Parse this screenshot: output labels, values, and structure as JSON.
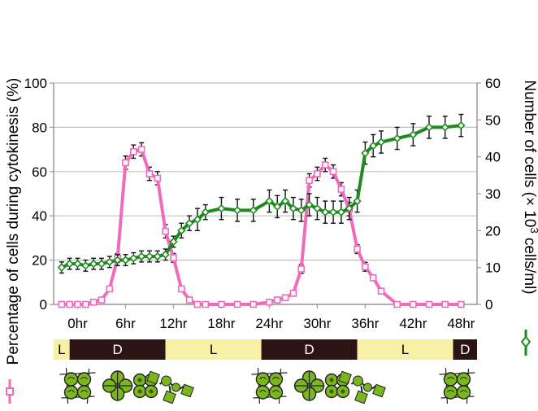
{
  "chart_data": {
    "type": "line",
    "xlabel": "",
    "ylabel": "Percentage of cells during cytokinesis (%)",
    "y2label_prefix": "Number of cells (× 10",
    "y2label_sup": "3",
    "y2label_suffix": " cells/ml)",
    "xlim": [
      -3,
      50
    ],
    "ylim": [
      0,
      100
    ],
    "y2lim": [
      0,
      60
    ],
    "y_ticks": [
      0,
      20,
      40,
      60,
      80,
      100
    ],
    "y2_ticks": [
      0,
      10,
      20,
      30,
      40,
      50,
      60
    ],
    "x_ticks": [
      {
        "value": 0,
        "label": "0hr"
      },
      {
        "value": 6,
        "label": "6hr"
      },
      {
        "value": 12,
        "label": "12hr"
      },
      {
        "value": 18,
        "label": "18hr"
      },
      {
        "value": 24,
        "label": "24hr"
      },
      {
        "value": 30,
        "label": "30hr"
      },
      {
        "value": 36,
        "label": "36hr"
      },
      {
        "value": 42,
        "label": "42hr"
      },
      {
        "value": 48,
        "label": "48hr"
      }
    ],
    "grid": true,
    "series": [
      {
        "axis": "left",
        "color": "#f06bbd",
        "marker": "square",
        "x": [
          -2,
          -1,
          0,
          1,
          2,
          3,
          4,
          5,
          6,
          7,
          8,
          9,
          10,
          11,
          12,
          13,
          14,
          15,
          16,
          18,
          20,
          22,
          24,
          25,
          26,
          27,
          28,
          29,
          30,
          31,
          32,
          33,
          34,
          35,
          36,
          37,
          38,
          40,
          42,
          44,
          46,
          48
        ],
        "values": [
          0,
          0,
          0,
          0,
          1,
          2,
          7,
          21,
          64,
          69,
          70,
          59,
          57,
          33,
          21,
          7,
          2,
          0,
          0,
          0,
          0,
          0,
          1,
          2,
          3,
          5,
          16,
          56,
          59,
          63,
          60,
          52,
          43,
          25,
          17,
          12,
          6,
          0,
          0,
          0,
          0,
          0
        ],
        "errors": [
          0,
          0,
          0,
          0,
          0,
          0,
          1,
          2,
          3,
          3,
          3,
          3,
          3,
          3,
          2,
          1,
          0,
          0,
          0,
          0,
          0,
          0,
          0,
          0,
          0,
          1,
          2,
          3,
          3,
          3,
          3,
          3,
          3,
          2,
          2,
          1,
          1,
          0,
          0,
          0,
          0,
          0
        ]
      },
      {
        "axis": "right",
        "color": "#1e8a1e",
        "marker": "diamond",
        "x": [
          -2,
          -1,
          0,
          1,
          2,
          3,
          4,
          5,
          6,
          7,
          8,
          9,
          10,
          11,
          12,
          13,
          14,
          15,
          16,
          18,
          20,
          22,
          24,
          25,
          26,
          27,
          28,
          29,
          30,
          31,
          32,
          33,
          34,
          35,
          36,
          37,
          38,
          40,
          42,
          44,
          46,
          48
        ],
        "values": [
          10,
          11,
          11,
          10.5,
          11,
          11,
          11.5,
          12,
          12,
          12.5,
          13,
          13,
          13,
          13.5,
          17,
          20,
          22,
          23,
          25,
          26,
          25.5,
          25.5,
          28,
          26.5,
          28,
          26,
          25.5,
          27,
          26,
          25,
          25,
          25,
          26,
          28,
          41,
          43,
          44,
          45,
          46,
          48,
          48,
          48.5
        ],
        "errors": [
          1.5,
          1.5,
          1.5,
          1.5,
          1.5,
          1.5,
          1.5,
          1.5,
          1.5,
          1.5,
          1.5,
          1.5,
          1.5,
          1.5,
          1.5,
          2,
          2,
          3,
          2,
          3,
          3,
          3,
          3,
          3,
          3,
          3,
          3,
          3,
          3,
          3,
          3,
          3,
          3,
          3,
          3,
          3,
          3,
          3,
          3,
          3,
          3,
          3
        ]
      }
    ],
    "light_dark_bar": [
      {
        "label": "L",
        "start": -3,
        "end": -1,
        "color": "#f7f1a6"
      },
      {
        "label": "D",
        "start": -1,
        "end": 11,
        "color": "#2b1413"
      },
      {
        "label": "L",
        "start": 11,
        "end": 23,
        "color": "#f7f1a6"
      },
      {
        "label": "D",
        "start": 23,
        "end": 35,
        "color": "#2b1413"
      },
      {
        "label": "L",
        "start": 35,
        "end": 47,
        "color": "#f7f1a6"
      },
      {
        "label": "D",
        "start": 47,
        "end": 50,
        "color": "#2b1413"
      }
    ],
    "cell_stages": [
      {
        "x": 0,
        "kind": "quad"
      },
      {
        "x": 5,
        "kind": "split4"
      },
      {
        "x": 8.5,
        "kind": "multi"
      },
      {
        "x": 11.5,
        "kind": "release"
      },
      {
        "x": 24,
        "kind": "quad"
      },
      {
        "x": 29,
        "kind": "split4"
      },
      {
        "x": 32.5,
        "kind": "multi"
      },
      {
        "x": 35.5,
        "kind": "release"
      },
      {
        "x": 47.5,
        "kind": "quad"
      }
    ]
  }
}
